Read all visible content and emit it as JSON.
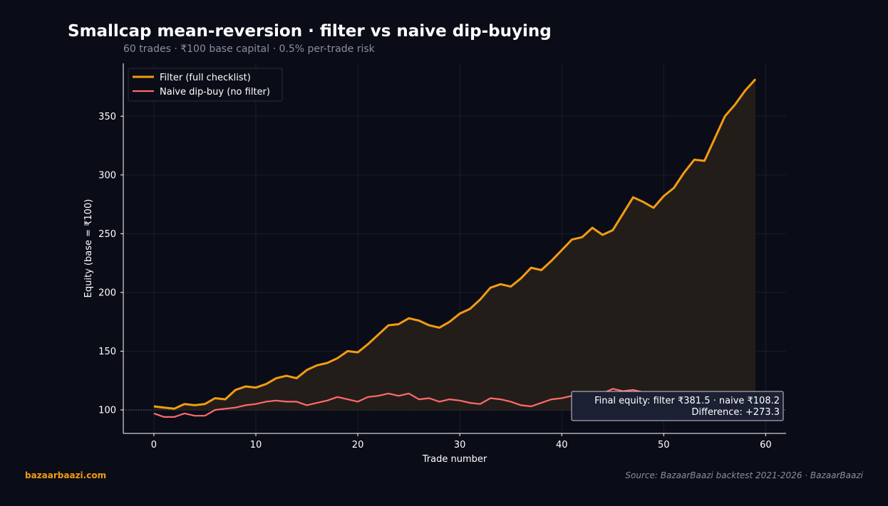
{
  "header": {
    "title": "Smallcap mean-reversion · filter vs naive dip-buying",
    "subtitle": "60 trades · ₹100 base capital · 0.5% per-trade risk"
  },
  "footer": {
    "brand": "bazaarbaazi.com",
    "source": "Source: BazaarBaazi backtest 2021-2026  ·  BazaarBaazi"
  },
  "colors": {
    "background": "#0a0d18",
    "filter": "#f39c12",
    "naive": "#ff6b6b",
    "fill": "#231d1a",
    "grid": "#1a1e2a",
    "text": "#ffffff",
    "muted": "#8a8f9e"
  },
  "chart_data": {
    "type": "line",
    "xlabel": "Trade number",
    "ylabel": "Equity (base = ₹100)",
    "xlim": [
      -3,
      62
    ],
    "ylim": [
      80,
      395
    ],
    "xticks": [
      0,
      10,
      20,
      30,
      40,
      50,
      60
    ],
    "yticks": [
      100,
      150,
      200,
      250,
      300,
      350
    ],
    "grid": true,
    "legend_position": "top-left",
    "baseline": 100,
    "series": [
      {
        "name": "Filter (full checklist)",
        "x": [
          0,
          1,
          2,
          3,
          4,
          5,
          6,
          7,
          8,
          9,
          10,
          11,
          12,
          13,
          14,
          15,
          16,
          17,
          18,
          19,
          20,
          21,
          22,
          23,
          24,
          25,
          26,
          27,
          28,
          29,
          30,
          31,
          32,
          33,
          34,
          35,
          36,
          37,
          38,
          39,
          40,
          41,
          42,
          43,
          44,
          45,
          46,
          47,
          48,
          49,
          50,
          51,
          52,
          53,
          54,
          55,
          56,
          57,
          58,
          59
        ],
        "values": [
          103,
          102,
          101,
          105,
          104,
          105,
          110,
          109,
          117,
          120,
          119,
          122,
          127,
          129,
          127,
          134,
          138,
          140,
          144,
          150,
          149,
          156,
          164,
          172,
          173,
          178,
          176,
          172,
          170,
          175,
          182,
          186,
          194,
          204,
          207,
          205,
          212,
          221,
          219,
          227,
          236,
          245,
          247,
          255,
          249,
          253,
          267,
          281,
          277,
          272,
          282,
          289,
          302,
          313,
          312,
          331,
          350,
          360,
          372,
          381.5
        ]
      },
      {
        "name": "Naive dip-buy (no filter)",
        "x": [
          0,
          1,
          2,
          3,
          4,
          5,
          6,
          7,
          8,
          9,
          10,
          11,
          12,
          13,
          14,
          15,
          16,
          17,
          18,
          19,
          20,
          21,
          22,
          23,
          24,
          25,
          26,
          27,
          28,
          29,
          30,
          31,
          32,
          33,
          34,
          35,
          36,
          37,
          38,
          39,
          40,
          41,
          42,
          43,
          44,
          45,
          46,
          47,
          48,
          49,
          50,
          51,
          52,
          53,
          54,
          55,
          56,
          57,
          58,
          59
        ],
        "values": [
          97,
          94,
          94,
          97,
          95,
          95,
          100,
          101,
          102,
          104,
          105,
          107,
          108,
          107,
          107,
          104,
          106,
          108,
          111,
          109,
          107,
          111,
          112,
          114,
          112,
          114,
          109,
          110,
          107,
          109,
          108,
          106,
          105,
          110,
          109,
          107,
          104,
          103,
          106,
          109,
          110,
          112,
          113,
          115,
          114,
          118,
          116,
          117,
          115,
          113,
          112,
          111,
          110,
          110,
          109,
          109,
          108,
          108,
          108,
          108.2
        ]
      }
    ],
    "annotation": {
      "line1": "Final equity: filter ₹381.5  ·  naive ₹108.2",
      "line2": "Difference: +273.3"
    }
  }
}
